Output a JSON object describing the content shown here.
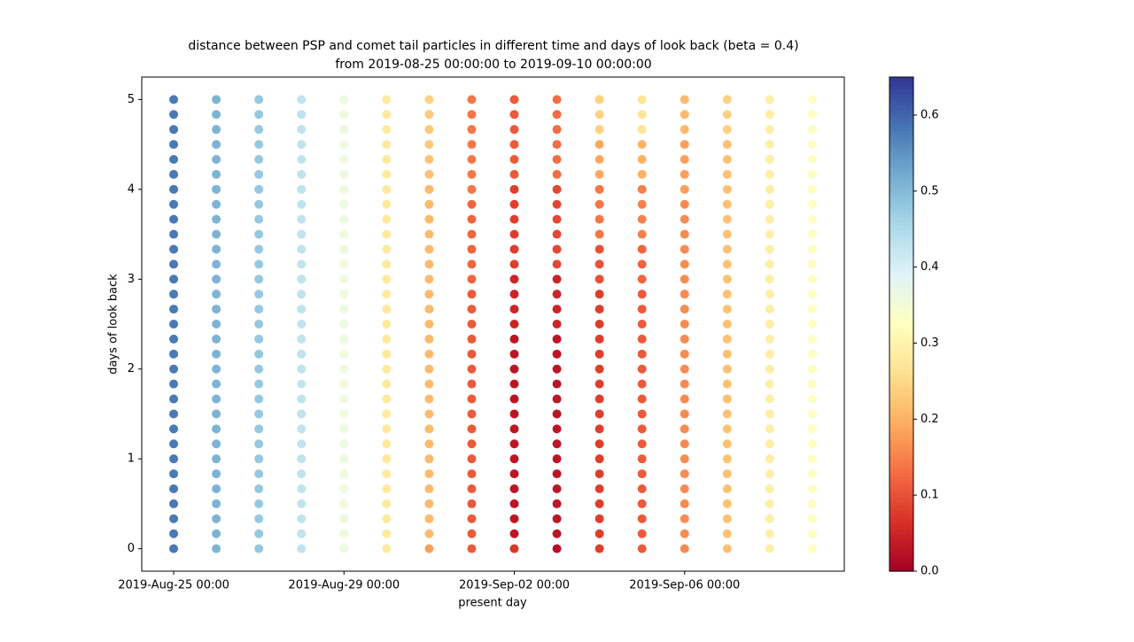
{
  "chart_data": {
    "type": "scatter",
    "title": "distance between PSP and comet tail particles in different time and days of look back (beta = 0.4)",
    "subtitle": "from 2019-08-25 00:00:00 to 2019-09-10 00:00:00",
    "xlabel": "present day",
    "ylabel": "days of look back",
    "colormap": "RdYlBu",
    "clim": [
      0,
      0.65
    ],
    "cticks": [
      0.0,
      0.1,
      0.2,
      0.3,
      0.4,
      0.5,
      0.6
    ],
    "x": [
      "2019-08-25T00:00",
      "2019-08-26T00:00",
      "2019-08-27T00:00",
      "2019-08-28T00:00",
      "2019-08-29T00:00",
      "2019-08-30T00:00",
      "2019-08-31T00:00",
      "2019-09-01T00:00",
      "2019-09-02T00:00",
      "2019-09-03T00:00",
      "2019-09-04T00:00",
      "2019-09-05T00:00",
      "2019-09-06T00:00",
      "2019-09-07T00:00",
      "2019-09-08T00:00",
      "2019-09-09T00:00"
    ],
    "y": [
      0,
      0.1667,
      0.3333,
      0.5,
      0.6667,
      0.8333,
      1,
      1.1667,
      1.3333,
      1.5,
      1.6667,
      1.8333,
      2,
      2.1667,
      2.3333,
      2.5,
      2.6667,
      2.8333,
      3,
      3.1667,
      3.3333,
      3.5,
      3.6667,
      3.8333,
      4,
      4.1667,
      4.3333,
      4.5,
      4.6667,
      4.8333,
      5
    ],
    "values": [
      [
        0.58,
        0.58,
        0.58,
        0.58,
        0.58,
        0.58,
        0.58,
        0.58,
        0.58,
        0.58,
        0.58,
        0.58,
        0.58,
        0.58,
        0.58,
        0.58,
        0.58,
        0.58,
        0.58,
        0.58,
        0.58,
        0.58,
        0.58,
        0.58,
        0.58,
        0.58,
        0.58,
        0.58,
        0.58,
        0.58,
        0.58
      ],
      [
        0.51,
        0.51,
        0.51,
        0.51,
        0.51,
        0.51,
        0.51,
        0.51,
        0.51,
        0.51,
        0.51,
        0.51,
        0.51,
        0.51,
        0.51,
        0.51,
        0.51,
        0.51,
        0.51,
        0.51,
        0.51,
        0.51,
        0.51,
        0.51,
        0.51,
        0.51,
        0.51,
        0.51,
        0.51,
        0.51,
        0.51
      ],
      [
        0.48,
        0.48,
        0.48,
        0.48,
        0.48,
        0.48,
        0.48,
        0.48,
        0.48,
        0.48,
        0.48,
        0.48,
        0.48,
        0.48,
        0.48,
        0.48,
        0.48,
        0.48,
        0.48,
        0.48,
        0.48,
        0.48,
        0.48,
        0.48,
        0.48,
        0.48,
        0.48,
        0.48,
        0.48,
        0.48,
        0.48
      ],
      [
        0.43,
        0.43,
        0.43,
        0.43,
        0.43,
        0.43,
        0.43,
        0.43,
        0.43,
        0.43,
        0.43,
        0.43,
        0.43,
        0.43,
        0.43,
        0.43,
        0.43,
        0.43,
        0.43,
        0.43,
        0.43,
        0.43,
        0.43,
        0.43,
        0.43,
        0.43,
        0.43,
        0.43,
        0.43,
        0.43,
        0.43
      ],
      [
        0.36,
        0.36,
        0.36,
        0.36,
        0.36,
        0.36,
        0.36,
        0.36,
        0.36,
        0.36,
        0.36,
        0.36,
        0.36,
        0.36,
        0.36,
        0.36,
        0.36,
        0.36,
        0.36,
        0.36,
        0.36,
        0.36,
        0.36,
        0.36,
        0.36,
        0.36,
        0.36,
        0.36,
        0.36,
        0.36,
        0.36
      ],
      [
        0.28,
        0.28,
        0.28,
        0.28,
        0.28,
        0.28,
        0.28,
        0.28,
        0.28,
        0.28,
        0.28,
        0.28,
        0.28,
        0.28,
        0.28,
        0.28,
        0.28,
        0.28,
        0.28,
        0.28,
        0.28,
        0.28,
        0.28,
        0.28,
        0.28,
        0.28,
        0.28,
        0.28,
        0.28,
        0.28,
        0.28
      ],
      [
        0.18,
        0.21,
        0.21,
        0.21,
        0.21,
        0.21,
        0.21,
        0.21,
        0.21,
        0.21,
        0.21,
        0.21,
        0.21,
        0.21,
        0.21,
        0.21,
        0.21,
        0.21,
        0.21,
        0.21,
        0.21,
        0.21,
        0.21,
        0.21,
        0.21,
        0.22,
        0.22,
        0.23,
        0.23,
        0.23,
        0.24
      ],
      [
        0.11,
        0.11,
        0.11,
        0.11,
        0.11,
        0.11,
        0.11,
        0.11,
        0.11,
        0.11,
        0.11,
        0.11,
        0.11,
        0.11,
        0.11,
        0.11,
        0.11,
        0.11,
        0.12,
        0.12,
        0.12,
        0.12,
        0.12,
        0.12,
        0.14,
        0.14,
        0.14,
        0.14,
        0.14,
        0.14,
        0.14
      ],
      [
        0.07,
        0.03,
        0.03,
        0.03,
        0.03,
        0.03,
        0.03,
        0.03,
        0.03,
        0.03,
        0.03,
        0.03,
        0.03,
        0.03,
        0.03,
        0.05,
        0.05,
        0.05,
        0.05,
        0.08,
        0.08,
        0.08,
        0.08,
        0.08,
        0.08,
        0.11,
        0.11,
        0.11,
        0.11,
        0.11,
        0.11
      ],
      [
        0.02,
        0.03,
        0.03,
        0.03,
        0.03,
        0.03,
        0.03,
        0.03,
        0.03,
        0.03,
        0.03,
        0.03,
        0.03,
        0.03,
        0.03,
        0.05,
        0.05,
        0.05,
        0.05,
        0.09,
        0.09,
        0.09,
        0.09,
        0.09,
        0.09,
        0.13,
        0.13,
        0.13,
        0.13,
        0.13,
        0.13
      ],
      [
        0.08,
        0.08,
        0.08,
        0.08,
        0.08,
        0.08,
        0.08,
        0.08,
        0.08,
        0.08,
        0.08,
        0.08,
        0.08,
        0.08,
        0.08,
        0.08,
        0.08,
        0.08,
        0.1,
        0.1,
        0.1,
        0.14,
        0.14,
        0.14,
        0.14,
        0.19,
        0.19,
        0.19,
        0.24,
        0.24,
        0.24
      ],
      [
        0.11,
        0.11,
        0.11,
        0.11,
        0.11,
        0.11,
        0.11,
        0.11,
        0.11,
        0.11,
        0.11,
        0.11,
        0.11,
        0.11,
        0.11,
        0.11,
        0.11,
        0.11,
        0.12,
        0.12,
        0.12,
        0.15,
        0.15,
        0.15,
        0.15,
        0.2,
        0.2,
        0.2,
        0.27,
        0.27,
        0.27
      ],
      [
        0.16,
        0.16,
        0.16,
        0.16,
        0.16,
        0.16,
        0.16,
        0.16,
        0.16,
        0.16,
        0.16,
        0.16,
        0.16,
        0.16,
        0.16,
        0.16,
        0.16,
        0.16,
        0.16,
        0.16,
        0.16,
        0.16,
        0.16,
        0.16,
        0.18,
        0.18,
        0.18,
        0.18,
        0.21,
        0.21,
        0.21
      ],
      [
        0.22,
        0.22,
        0.22,
        0.22,
        0.22,
        0.22,
        0.22,
        0.22,
        0.22,
        0.22,
        0.22,
        0.22,
        0.22,
        0.22,
        0.22,
        0.22,
        0.22,
        0.22,
        0.22,
        0.22,
        0.22,
        0.22,
        0.22,
        0.22,
        0.22,
        0.22,
        0.22,
        0.22,
        0.24,
        0.24,
        0.24
      ],
      [
        0.29,
        0.29,
        0.29,
        0.29,
        0.29,
        0.29,
        0.29,
        0.29,
        0.29,
        0.29,
        0.29,
        0.29,
        0.29,
        0.29,
        0.29,
        0.29,
        0.29,
        0.29,
        0.29,
        0.29,
        0.29,
        0.29,
        0.29,
        0.29,
        0.29,
        0.29,
        0.29,
        0.29,
        0.29,
        0.29,
        0.29
      ],
      [
        0.33,
        0.33,
        0.33,
        0.33,
        0.33,
        0.33,
        0.33,
        0.33,
        0.33,
        0.33,
        0.33,
        0.33,
        0.33,
        0.33,
        0.33,
        0.33,
        0.33,
        0.33,
        0.33,
        0.33,
        0.33,
        0.33,
        0.33,
        0.33,
        0.33,
        0.33,
        0.33,
        0.33,
        0.33,
        0.33,
        0.33
      ]
    ],
    "xlim": [
      "2019-08-24T06:00",
      "2019-09-09T18:00"
    ],
    "xticks": [
      {
        "value": "2019-08-25T00:00",
        "label": "2019-Aug-25 00:00"
      },
      {
        "value": "2019-08-29T00:00",
        "label": "2019-Aug-29 00:00"
      },
      {
        "value": "2019-09-02T00:00",
        "label": "2019-Sep-02 00:00"
      },
      {
        "value": "2019-09-06T00:00",
        "label": "2019-Sep-06 00:00"
      }
    ],
    "ylim": [
      -0.25,
      5.25
    ],
    "yticks": [
      0,
      1,
      2,
      3,
      4,
      5
    ]
  }
}
